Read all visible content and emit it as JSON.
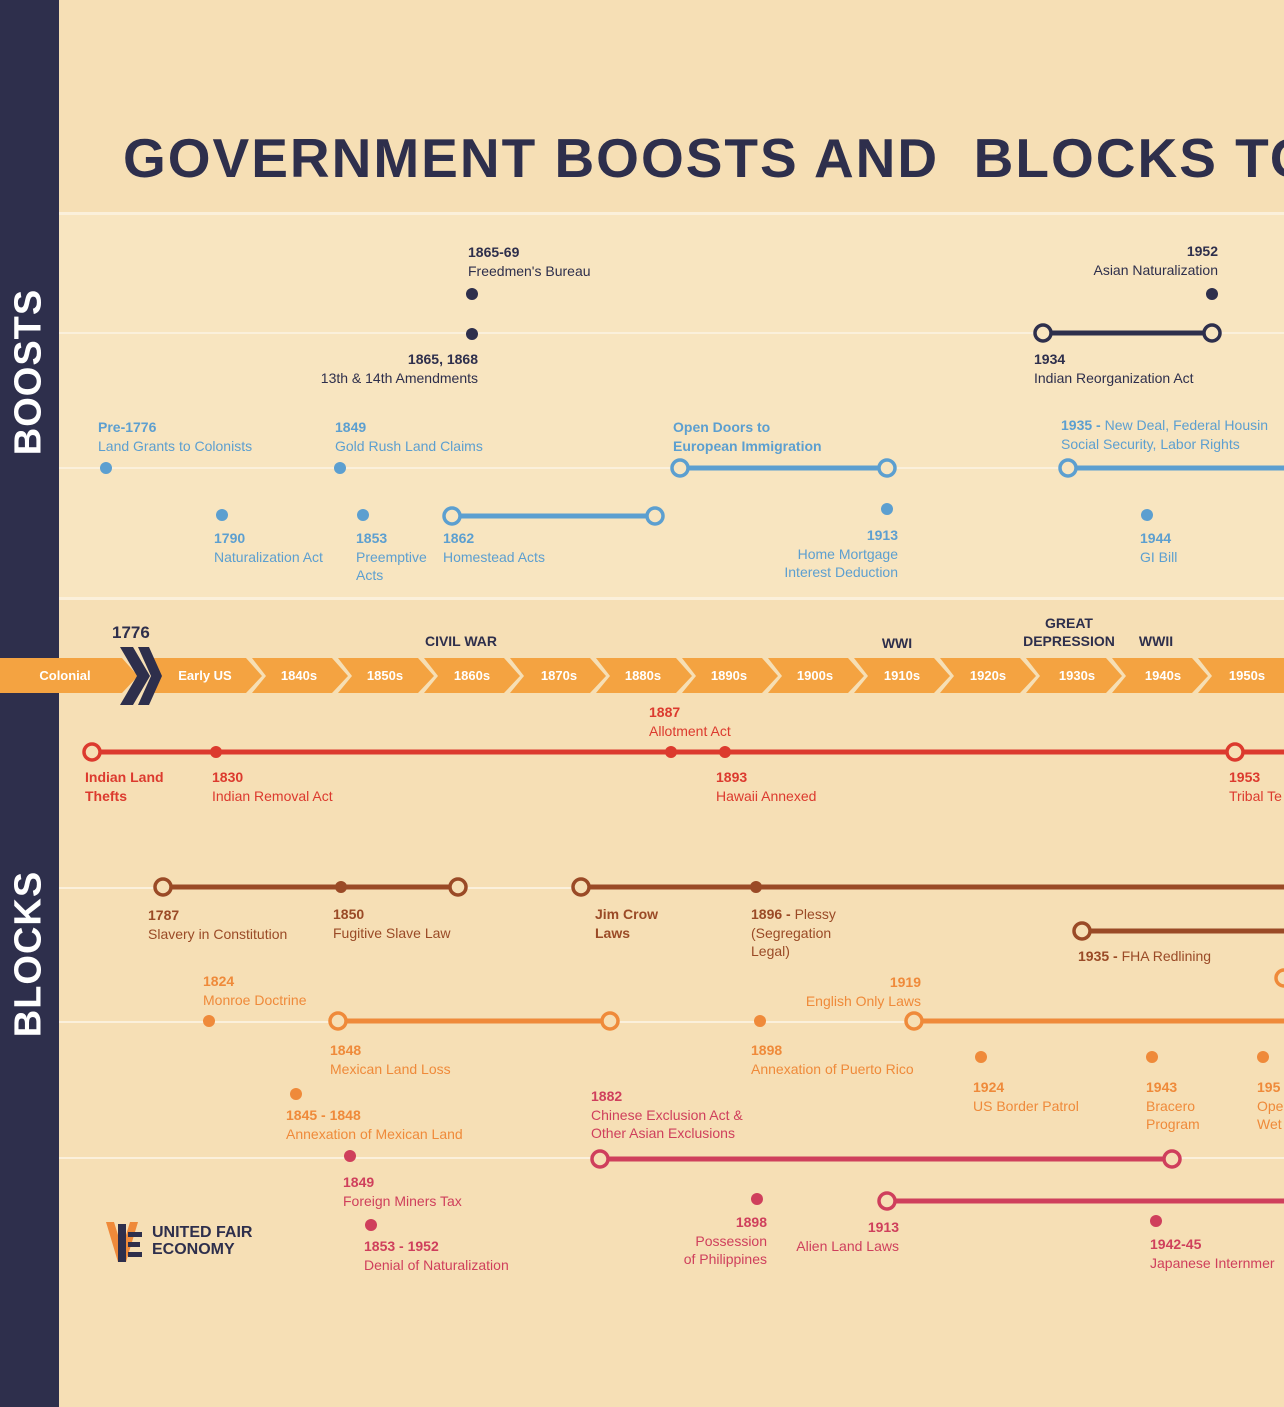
{
  "title": "GOVERNMENT BOOSTS AND  BLOCKS TO",
  "side_labels": {
    "boosts": "BOOSTS",
    "blocks": "BLOCKS"
  },
  "timeline": {
    "year_marker": "1776",
    "decades": [
      "Colonial",
      "Early US",
      "1840s",
      "1850s",
      "1860s",
      "1870s",
      "1880s",
      "1890s",
      "1900s",
      "1910s",
      "1920s",
      "1930s",
      "1940s",
      "1950s"
    ],
    "eras": {
      "civil_war": "CIVIL WAR",
      "wwi": "WWI",
      "great_depression": "GREAT\nDEPRESSION",
      "wwii": "WWII"
    }
  },
  "boosts": {
    "freedmen": {
      "year": "1865-69",
      "desc": "Freedmen's Bureau"
    },
    "amendments": {
      "year": "1865, 1868",
      "desc": "13th & 14th Amendments"
    },
    "asian_nat": {
      "year": "1952",
      "desc": "Asian Naturalization"
    },
    "indian_reorg": {
      "year": "1934",
      "desc": "Indian Reorganization Act"
    },
    "land_grants": {
      "year": "Pre-1776",
      "desc": "Land Grants to Colonists"
    },
    "gold_rush": {
      "year": "1849",
      "desc": "Gold Rush Land Claims"
    },
    "open_doors": {
      "desc": "Open Doors to\nEuropean Immigration"
    },
    "new_deal": {
      "year": "1935 -",
      "desc": "New Deal, Federal Housin",
      "desc2": "Social Security, Labor Rights"
    },
    "naturalization_act": {
      "year": "1790",
      "desc": "Naturalization Act"
    },
    "preemptive": {
      "year": "1853",
      "desc": "Preemptive\nActs"
    },
    "homestead": {
      "year": "1862",
      "desc": "Homestead Acts"
    },
    "mortgage": {
      "year": "1913",
      "desc": "Home Mortgage\nInterest Deduction"
    },
    "gi_bill": {
      "year": "1944",
      "desc": "GI Bill"
    }
  },
  "blocks": {
    "allotment": {
      "year": "1887",
      "desc": "Allotment Act"
    },
    "indian_land": {
      "desc": "Indian Land\nThefts"
    },
    "removal": {
      "year": "1830",
      "desc": "Indian Removal Act"
    },
    "hawaii": {
      "year": "1893",
      "desc": "Hawaii Annexed"
    },
    "tribal": {
      "year": "1953",
      "desc": "Tribal Te"
    },
    "slavery": {
      "year": "1787",
      "desc": "Slavery in Constitution"
    },
    "fugitive": {
      "year": "1850",
      "desc": "Fugitive Slave Law"
    },
    "jim_crow": {
      "desc": "Jim Crow\nLaws"
    },
    "plessy": {
      "year": "1896 -",
      "desc": "Plessy",
      "desc2": "(Segregation\nLegal)"
    },
    "redlining": {
      "year": "1935 -",
      "desc": "FHA Redlining"
    },
    "monroe": {
      "year": "1824",
      "desc": "Monroe Doctrine"
    },
    "english_only": {
      "year": "1919",
      "desc": "English Only Laws"
    },
    "mexican_land": {
      "year": "1848",
      "desc": "Mexican Land Loss"
    },
    "puerto_rico": {
      "year": "1898",
      "desc": "Annexation of Puerto Rico"
    },
    "border_patrol": {
      "year": "1924",
      "desc": "US Border Patrol"
    },
    "bracero": {
      "year": "1943",
      "desc": "Bracero\nProgram"
    },
    "wetback": {
      "year": "195",
      "desc": "Ope\nWet"
    },
    "annex_mexican": {
      "year": "1845 - 1848",
      "desc": "Annexation of Mexican Land"
    },
    "chinese": {
      "year": "1882",
      "desc": "Chinese Exclusion Act &\nOther Asian Exclusions"
    },
    "miners_tax": {
      "year": "1849",
      "desc": "Foreign Miners Tax"
    },
    "philippines": {
      "year": "1898",
      "desc": "Possession\nof Philippines"
    },
    "alien_land": {
      "year": "1913",
      "desc": "Alien Land Laws"
    },
    "japanese": {
      "year": "1942-45",
      "desc": "Japanese Internmer"
    },
    "denial_nat": {
      "year": "1853 - 1952",
      "desc": "Denial of Naturalization"
    }
  },
  "logo": {
    "line1": "UNITED FAIR",
    "line2": "ECONOMY"
  },
  "colors": {
    "navy": "#2e2f4c",
    "blue": "#5c9fd0",
    "red": "#dc3a2e",
    "brown": "#9a4a26",
    "orange": "#ef8a3a",
    "crimson": "#cf3f5c",
    "arrow": "#f4a341"
  }
}
